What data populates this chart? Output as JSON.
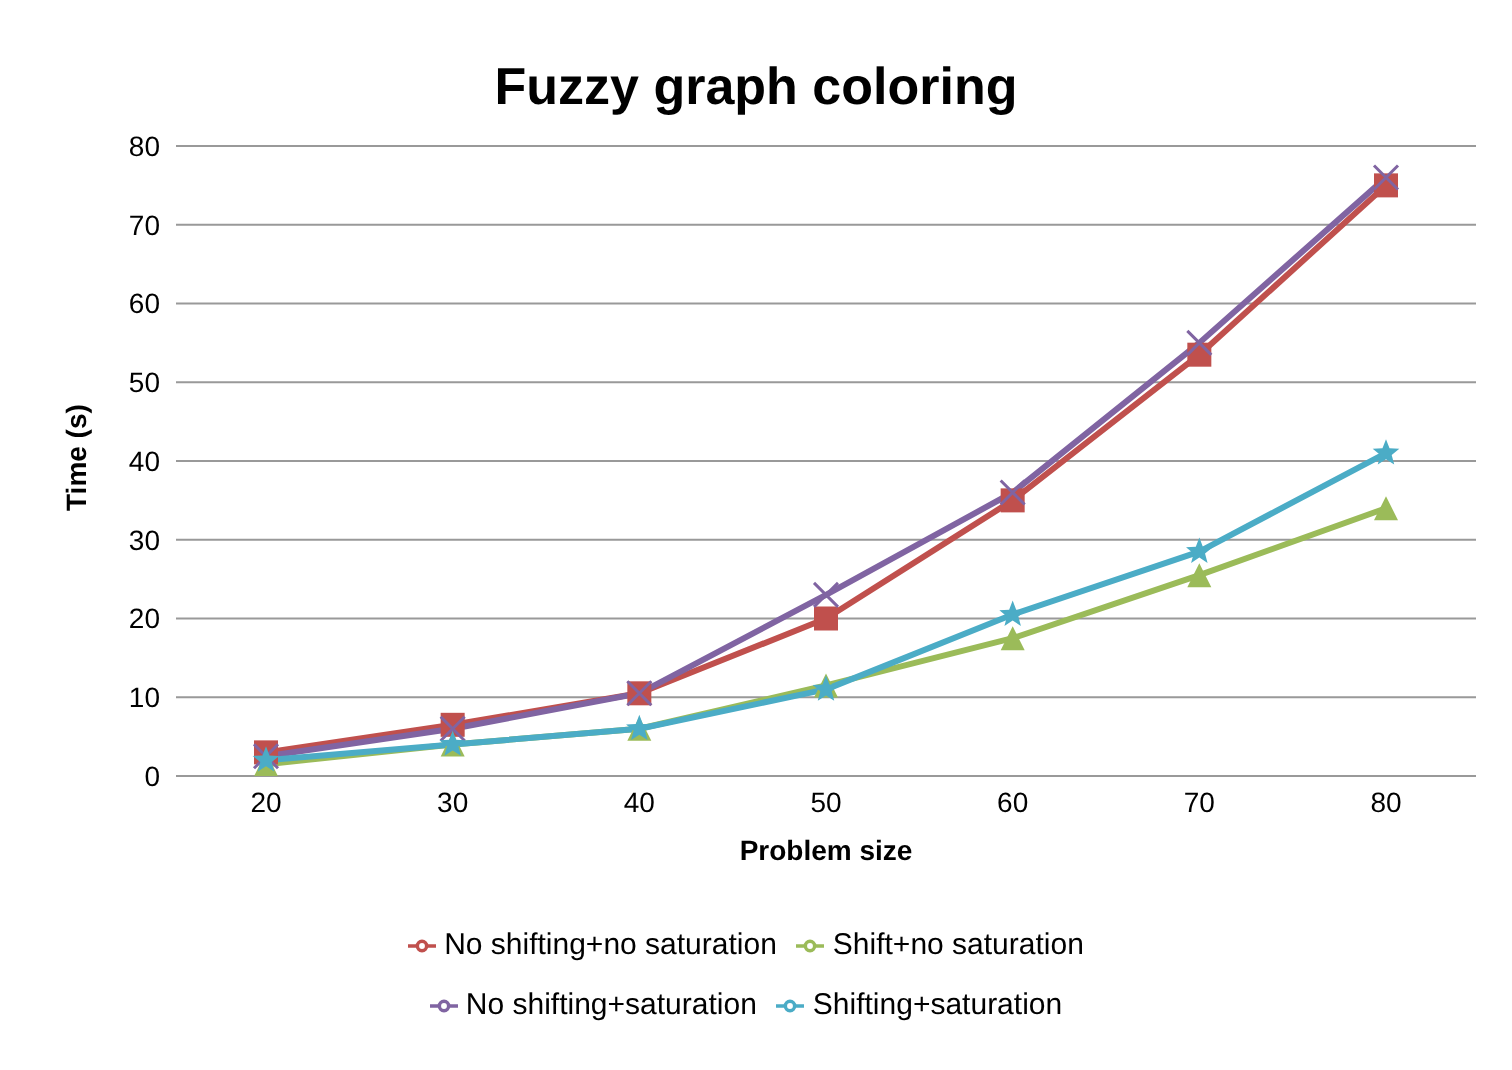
{
  "chart_data": {
    "type": "line",
    "title": "Fuzzy graph coloring",
    "xlabel": "Problem size",
    "ylabel": "Time (s)",
    "categories": [
      "20",
      "30",
      "40",
      "50",
      "60",
      "70",
      "80"
    ],
    "series": [
      {
        "name": "No shifting+no saturation",
        "color": "#c0504d",
        "marker": "square",
        "values": [
          3,
          6.5,
          10.5,
          20,
          35,
          53.5,
          75
        ]
      },
      {
        "name": "Shift+no saturation",
        "color": "#9bbb59",
        "marker": "triangle",
        "values": [
          1.5,
          4,
          6,
          11.5,
          17.5,
          25.5,
          34
        ]
      },
      {
        "name": "No shifting+saturation",
        "color": "#8064a2",
        "marker": "cross",
        "values": [
          2.5,
          6,
          10.5,
          23,
          36,
          55,
          76
        ]
      },
      {
        "name": "Shifting+saturation",
        "color": "#4bacc6",
        "marker": "star",
        "values": [
          2,
          4,
          6,
          11,
          20.5,
          28.5,
          41
        ]
      }
    ],
    "ylim": [
      0,
      80
    ],
    "yticks": [
      0,
      10,
      20,
      30,
      40,
      50,
      60,
      70,
      80
    ],
    "grid": "y",
    "legend": "bottom",
    "line_style": "solid"
  }
}
